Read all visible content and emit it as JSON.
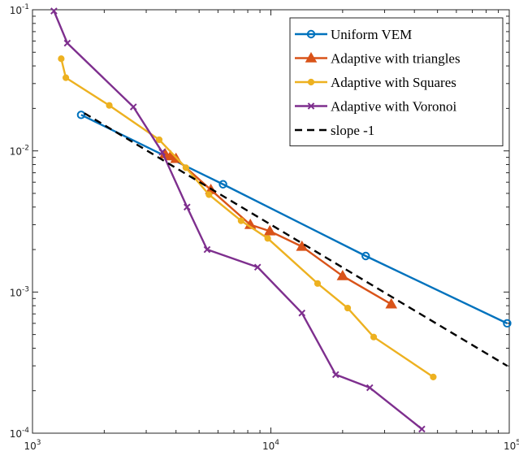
{
  "chart_data": {
    "type": "line",
    "title": "",
    "xlabel": "",
    "ylabel": "",
    "xscale": "log",
    "yscale": "log",
    "xlim": [
      1000,
      100000
    ],
    "ylim": [
      0.0001,
      0.1
    ],
    "grid": false,
    "legend_position": "top-right",
    "x_tick_labels": [
      {
        "base": "10",
        "exp": "3"
      },
      {
        "base": "10",
        "exp": "4"
      },
      {
        "base": "10",
        "exp": "5"
      }
    ],
    "y_tick_labels": [
      {
        "base": "10",
        "exp": "-4"
      },
      {
        "base": "10",
        "exp": "-3"
      },
      {
        "base": "10",
        "exp": "-2"
      },
      {
        "base": "10",
        "exp": "-1"
      }
    ],
    "series": [
      {
        "name": "Uniform VEM",
        "color": "#0072BD",
        "marker": "circle",
        "dashed": false,
        "x": [
          1600,
          6300,
          25000,
          98000
        ],
        "y": [
          0.018,
          0.0058,
          0.0018,
          0.0006
        ]
      },
      {
        "name": "Adaptive with triangles",
        "color": "#D95319",
        "marker": "triangle",
        "dashed": false,
        "x": [
          3600,
          3800,
          4000,
          5600,
          8200,
          9900,
          13500,
          20000,
          32000
        ],
        "y": [
          0.0095,
          0.0092,
          0.0088,
          0.0053,
          0.003,
          0.0027,
          0.0021,
          0.0013,
          0.00082
        ]
      },
      {
        "name": "Adaptive with Squares",
        "color": "#EDB120",
        "marker": "dot",
        "dashed": false,
        "x": [
          1320,
          1380,
          2100,
          3400,
          4400,
          5500,
          7500,
          9700,
          15700,
          21000,
          27000,
          48000
        ],
        "y": [
          0.045,
          0.033,
          0.021,
          0.012,
          0.0076,
          0.0049,
          0.0032,
          0.0024,
          0.00115,
          0.00077,
          0.00048,
          0.00025
        ]
      },
      {
        "name": "Adaptive with Voronoi",
        "color": "#7E2F8E",
        "marker": "x",
        "dashed": false,
        "x": [
          1230,
          1400,
          2650,
          3500,
          4450,
          5400,
          8800,
          13500,
          18700,
          26000,
          43000
        ],
        "y": [
          0.098,
          0.058,
          0.0205,
          0.0098,
          0.004,
          0.002,
          0.0015,
          0.00071,
          0.00026,
          0.00021,
          0.000107
        ]
      },
      {
        "name": "slope -1",
        "color": "#000000",
        "marker": "none",
        "dashed": true,
        "x": [
          1650,
          98000
        ],
        "y": [
          0.0185,
          0.0003
        ]
      }
    ]
  }
}
